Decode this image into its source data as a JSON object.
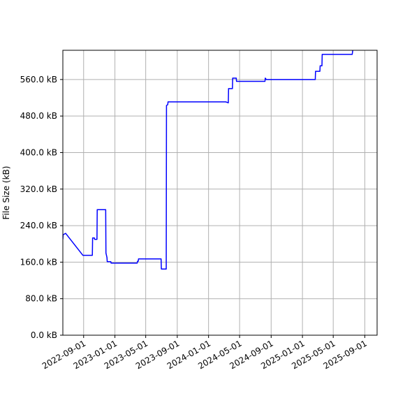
{
  "chart_data": {
    "type": "line",
    "title": "",
    "xlabel": "",
    "ylabel": "File Size (kB)",
    "xlim": [
      "2022-06-12",
      "2025-10-19"
    ],
    "ylim": [
      0,
      624
    ],
    "grid": true,
    "line_color": "#0000ff",
    "x_ticks": [
      "2022-09-01",
      "2023-01-01",
      "2023-05-01",
      "2023-09-01",
      "2024-01-01",
      "2024-05-01",
      "2024-09-01",
      "2025-01-01",
      "2025-05-01",
      "2025-09-01"
    ],
    "y_ticks": [
      {
        "value": 0,
        "label": "0.0 kB"
      },
      {
        "value": 80,
        "label": "80.0 kB"
      },
      {
        "value": 160,
        "label": "160.0 kB"
      },
      {
        "value": 240,
        "label": "240.0 kB"
      },
      {
        "value": 320,
        "label": "320.0 kB"
      },
      {
        "value": 400,
        "label": "400.0 kB"
      },
      {
        "value": 480,
        "label": "480.0 kB"
      },
      {
        "value": 560,
        "label": "560.0 kB"
      }
    ],
    "series": [
      {
        "points": [
          [
            "2022-06-12",
            210
          ],
          [
            "2022-06-13",
            220
          ],
          [
            "2022-06-23",
            223
          ],
          [
            "2022-08-29",
            175
          ],
          [
            "2022-09-15",
            175
          ],
          [
            "2022-10-05",
            175
          ],
          [
            "2022-10-06",
            213
          ],
          [
            "2022-10-13",
            213
          ],
          [
            "2022-10-14",
            210
          ],
          [
            "2022-10-23",
            210
          ],
          [
            "2022-10-24",
            275
          ],
          [
            "2022-11-26",
            275
          ],
          [
            "2022-11-27",
            180
          ],
          [
            "2022-12-01",
            170
          ],
          [
            "2022-12-02",
            161
          ],
          [
            "2022-12-16",
            161
          ],
          [
            "2022-12-17",
            158
          ],
          [
            "2023-02-20",
            158
          ],
          [
            "2023-03-29",
            158
          ],
          [
            "2023-03-30",
            162
          ],
          [
            "2023-04-02",
            162
          ],
          [
            "2023-04-03",
            167
          ],
          [
            "2023-06-30",
            167
          ],
          [
            "2023-07-01",
            145
          ],
          [
            "2023-07-20",
            145
          ],
          [
            "2023-07-21",
            503
          ],
          [
            "2023-07-26",
            505
          ],
          [
            "2023-07-27",
            511
          ],
          [
            "2024-03-08",
            511
          ],
          [
            "2024-03-18",
            509
          ],
          [
            "2024-03-19",
            540
          ],
          [
            "2024-04-03",
            540
          ],
          [
            "2024-04-04",
            563
          ],
          [
            "2024-04-18",
            563
          ],
          [
            "2024-04-19",
            556
          ],
          [
            "2024-08-08",
            556
          ],
          [
            "2024-08-09",
            563
          ],
          [
            "2024-08-13",
            560
          ],
          [
            "2025-02-20",
            560
          ],
          [
            "2025-02-21",
            578
          ],
          [
            "2025-03-10",
            578
          ],
          [
            "2025-03-11",
            590
          ],
          [
            "2025-03-18",
            590
          ],
          [
            "2025-03-19",
            615
          ],
          [
            "2025-07-14",
            615
          ],
          [
            "2025-07-16",
            624
          ]
        ]
      }
    ]
  }
}
